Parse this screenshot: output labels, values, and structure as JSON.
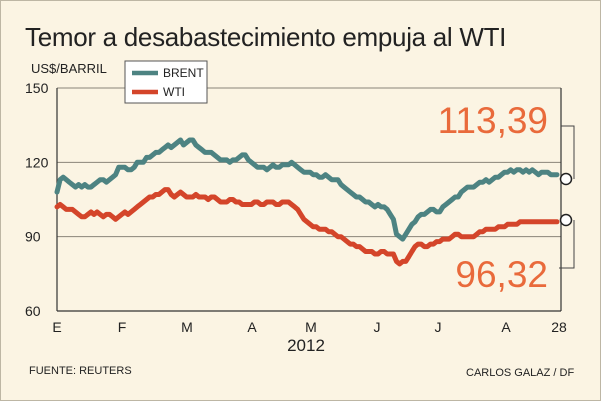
{
  "chart_data": {
    "type": "line",
    "title": "Temor a desabastecimiento empuja al WTI",
    "ylabel": "US$/BARRIL",
    "ylim": [
      60,
      150
    ],
    "yticks": [
      60,
      90,
      120,
      150
    ],
    "xticks": [
      "E",
      "F",
      "M",
      "A",
      "M",
      "J",
      "J",
      "A",
      "28"
    ],
    "xlabel": "2012",
    "legend_position": "top-left",
    "grid": true,
    "colors": {
      "brent": "#4d8382",
      "wti": "#d4452a",
      "label": "#e96a3b"
    },
    "series": [
      {
        "name": "BRENT",
        "values": [
          108,
          113,
          114,
          113,
          112,
          111,
          110,
          111,
          110,
          111,
          110,
          110,
          111,
          112,
          113,
          113,
          112,
          113,
          114,
          115,
          118,
          118,
          118,
          117,
          117,
          118,
          120,
          120,
          120,
          122,
          122,
          123,
          124,
          124,
          125,
          126,
          127,
          126,
          127,
          128,
          129,
          127,
          128,
          129,
          129,
          127,
          126,
          125,
          124,
          124,
          124,
          123,
          122,
          121,
          121,
          121,
          120,
          121,
          121,
          122,
          123,
          123,
          121,
          120,
          119,
          118,
          118,
          118,
          117,
          118,
          119,
          118,
          118,
          119,
          119,
          119,
          120,
          119,
          118,
          117,
          116,
          116,
          116,
          115,
          115,
          114,
          114,
          115,
          114,
          113,
          113,
          113,
          111,
          110,
          109,
          108,
          107,
          106,
          106,
          105,
          104,
          104,
          103,
          102,
          103,
          102,
          102,
          101,
          99,
          97,
          91,
          90,
          89,
          91,
          93,
          95,
          96,
          98,
          99,
          99,
          100,
          101,
          101,
          100,
          100,
          102,
          103,
          104,
          105,
          106,
          106,
          108,
          109,
          110,
          110,
          110,
          111,
          112,
          112,
          113,
          112,
          113,
          114,
          114,
          115,
          116,
          116,
          117,
          116,
          117,
          117,
          116,
          117,
          116,
          117,
          116,
          115,
          116,
          116,
          116,
          115,
          115,
          115
        ]
      },
      {
        "name": "WTI",
        "values": [
          102,
          103,
          102,
          101,
          101,
          101,
          100,
          99,
          98,
          98,
          99,
          100,
          99,
          100,
          99,
          98,
          99,
          99,
          98,
          97,
          98,
          99,
          100,
          99,
          100,
          101,
          102,
          103,
          104,
          105,
          106,
          106,
          107,
          107,
          108,
          109,
          109,
          107,
          106,
          107,
          108,
          107,
          106,
          106,
          106,
          107,
          106,
          106,
          106,
          105,
          106,
          106,
          105,
          104,
          104,
          104,
          105,
          105,
          104,
          104,
          103,
          103,
          103,
          103,
          104,
          104,
          103,
          103,
          104,
          104,
          104,
          103,
          103,
          104,
          104,
          104,
          103,
          102,
          101,
          99,
          97,
          96,
          95,
          94,
          94,
          93,
          93,
          93,
          92,
          92,
          91,
          90,
          90,
          89,
          88,
          87,
          87,
          86,
          86,
          85,
          84,
          84,
          84,
          83,
          83,
          84,
          84,
          83,
          83,
          83,
          80,
          79,
          80,
          80,
          82,
          84,
          86,
          87,
          87,
          86,
          86,
          87,
          87,
          88,
          88,
          89,
          89,
          89,
          90,
          91,
          91,
          90,
          90,
          90,
          90,
          90,
          91,
          92,
          92,
          93,
          93,
          93,
          93,
          94,
          94,
          94,
          95,
          95,
          95,
          95,
          96,
          96,
          96,
          96,
          96,
          96,
          96,
          96,
          96,
          96,
          96,
          96,
          96
        ]
      }
    ],
    "annotations": [
      {
        "series": "BRENT",
        "value": "113,39"
      },
      {
        "series": "WTI",
        "value": "96,32"
      }
    ]
  },
  "footer": {
    "source": "FUENTE: REUTERS",
    "credit": "CARLOS GALAZ / DF"
  }
}
